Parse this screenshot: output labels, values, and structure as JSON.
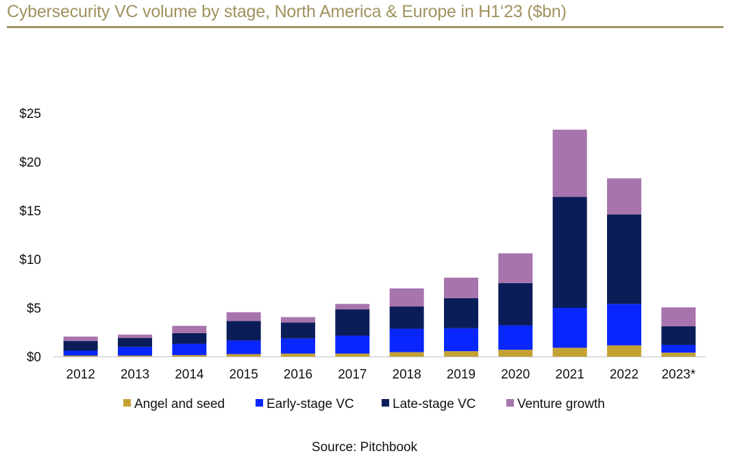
{
  "title": "Cybersecurity VC volume by stage, North America & Europe in H1‘23 ($bn)",
  "source": "Source: Pitchbook",
  "colors": {
    "title": "#a0925e",
    "angel": "#c4a133",
    "early": "#0a26ff",
    "late": "#0b1d59",
    "growth": "#a774ad"
  },
  "chart_data": {
    "type": "bar",
    "stacked": true,
    "categories": [
      "2012",
      "2013",
      "2014",
      "2015",
      "2016",
      "2017",
      "2018",
      "2019",
      "2020",
      "2021",
      "2022",
      "2023*"
    ],
    "series": [
      {
        "name": "Angel and seed",
        "color": "#c4a133",
        "values": [
          0.1,
          0.1,
          0.15,
          0.25,
          0.3,
          0.3,
          0.45,
          0.55,
          0.7,
          0.9,
          1.15,
          0.4
        ]
      },
      {
        "name": "Early-stage VC",
        "color": "#0a26ff",
        "values": [
          0.5,
          0.9,
          1.15,
          1.4,
          1.55,
          1.85,
          2.4,
          2.35,
          2.5,
          4.1,
          4.25,
          0.8
        ]
      },
      {
        "name": "Late-stage VC",
        "color": "#0b1d59",
        "values": [
          1.0,
          0.9,
          1.1,
          2.0,
          1.65,
          2.7,
          2.3,
          3.1,
          4.35,
          11.4,
          9.2,
          1.9
        ]
      },
      {
        "name": "Venture growth",
        "color": "#a774ad",
        "values": [
          0.45,
          0.35,
          0.75,
          0.9,
          0.55,
          0.55,
          1.85,
          2.1,
          3.05,
          6.9,
          3.7,
          1.95
        ]
      }
    ],
    "yticks": [
      "$0",
      "$5",
      "$10",
      "$15",
      "$20",
      "$25"
    ],
    "ylim": [
      0,
      25
    ],
    "grid": false,
    "legend_position": "bottom"
  }
}
